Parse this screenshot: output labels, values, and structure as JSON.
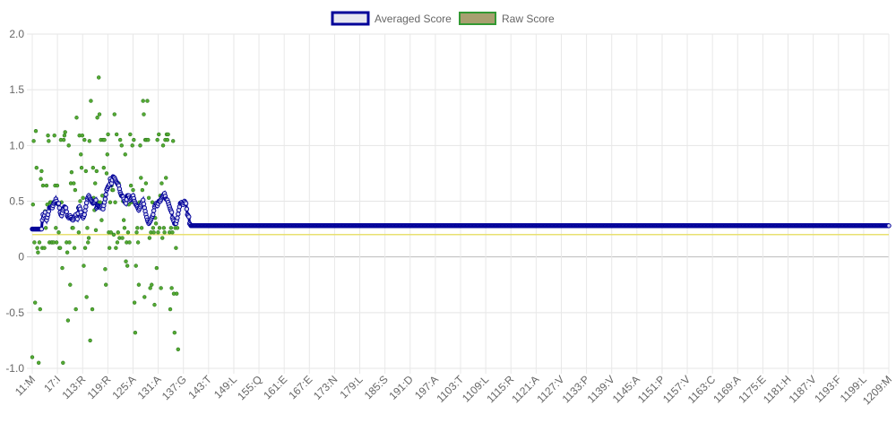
{
  "chart_data": {
    "type": "line",
    "legend": {
      "position": "top",
      "items": [
        {
          "label": "Averaged Score",
          "color": "#000099",
          "fill": "#e6e6f0"
        },
        {
          "label": "Raw Score",
          "color": "#339933",
          "fill": "#a8a070"
        }
      ]
    },
    "grid": true,
    "ylim": [
      -1.0,
      2.0
    ],
    "y_ticks": [
      "2.0",
      "1.5",
      "1.0",
      "0.5",
      "0",
      "-0.5",
      "-1.0"
    ],
    "y_tick_values": [
      2.0,
      1.5,
      1.0,
      0.5,
      0,
      -0.5,
      -1.0
    ],
    "threshold": {
      "value": 0.2,
      "color": "#e8e070"
    },
    "x_range": [
      11,
      1209
    ],
    "x_ticks": [
      "11:M",
      "17:I",
      "113:R",
      "119:R",
      "125:A",
      "131:A",
      "137:G",
      "143:T",
      "149:L",
      "155:Q",
      "161:E",
      "167:E",
      "173:N",
      "179:L",
      "185:S",
      "191:D",
      "197:A",
      "1103:T",
      "1109:L",
      "1115:R",
      "1121:A",
      "1127:V",
      "1133:P",
      "1139:V",
      "1145:A",
      "1151:P",
      "1157:V",
      "1163:C",
      "1169:A",
      "1175:E",
      "1181:H",
      "1187:V",
      "1193:F",
      "1199:L",
      "1209:M"
    ],
    "averaged_anchors": [
      [
        11,
        0.25
      ],
      [
        17,
        0.25
      ],
      [
        20,
        0.25
      ],
      [
        24,
        0.25
      ],
      [
        25,
        0.33
      ],
      [
        26,
        0.38
      ],
      [
        27,
        0.35
      ],
      [
        28,
        0.37
      ],
      [
        29,
        0.4
      ],
      [
        30,
        0.35
      ],
      [
        31,
        0.33
      ],
      [
        33,
        0.38
      ],
      [
        35,
        0.44
      ],
      [
        37,
        0.45
      ],
      [
        39,
        0.44
      ],
      [
        41,
        0.48
      ],
      [
        43,
        0.5
      ],
      [
        44,
        0.52
      ],
      [
        46,
        0.48
      ],
      [
        48,
        0.48
      ],
      [
        50,
        0.4
      ],
      [
        51,
        0.38
      ],
      [
        52,
        0.37
      ],
      [
        54,
        0.42
      ],
      [
        56,
        0.45
      ],
      [
        58,
        0.44
      ],
      [
        60,
        0.37
      ],
      [
        62,
        0.35
      ],
      [
        64,
        0.37
      ],
      [
        66,
        0.34
      ],
      [
        68,
        0.33
      ],
      [
        70,
        0.36
      ],
      [
        72,
        0.38
      ],
      [
        73,
        0.35
      ],
      [
        74,
        0.34
      ],
      [
        75,
        0.39
      ],
      [
        76,
        0.44
      ],
      [
        77,
        0.45
      ],
      [
        78,
        0.43
      ],
      [
        80,
        0.37
      ],
      [
        82,
        0.35
      ],
      [
        84,
        0.38
      ],
      [
        86,
        0.45
      ],
      [
        88,
        0.52
      ],
      [
        90,
        0.55
      ],
      [
        92,
        0.52
      ],
      [
        94,
        0.5
      ],
      [
        96,
        0.48
      ],
      [
        98,
        0.49
      ],
      [
        100,
        0.51
      ],
      [
        101,
        0.44
      ],
      [
        103,
        0.46
      ],
      [
        105,
        0.45
      ],
      [
        107,
        0.44
      ],
      [
        109,
        0.46
      ],
      [
        110,
        0.43
      ],
      [
        111,
        0.46
      ],
      [
        113,
        0.52
      ],
      [
        115,
        0.6
      ],
      [
        117,
        0.63
      ],
      [
        119,
        0.65
      ],
      [
        120,
        0.7
      ],
      [
        122,
        0.66
      ],
      [
        124,
        0.72
      ],
      [
        126,
        0.71
      ],
      [
        128,
        0.68
      ],
      [
        130,
        0.66
      ],
      [
        132,
        0.64
      ],
      [
        134,
        0.58
      ],
      [
        136,
        0.55
      ],
      [
        138,
        0.54
      ],
      [
        140,
        0.5
      ],
      [
        142,
        0.48
      ],
      [
        144,
        0.55
      ],
      [
        146,
        0.55
      ],
      [
        148,
        0.51
      ],
      [
        150,
        0.53
      ],
      [
        152,
        0.55
      ],
      [
        154,
        0.5
      ],
      [
        156,
        0.47
      ],
      [
        158,
        0.45
      ],
      [
        160,
        0.42
      ],
      [
        162,
        0.45
      ],
      [
        164,
        0.48
      ],
      [
        166,
        0.51
      ],
      [
        168,
        0.44
      ],
      [
        170,
        0.38
      ],
      [
        172,
        0.33
      ],
      [
        174,
        0.3
      ],
      [
        176,
        0.32
      ],
      [
        178,
        0.35
      ],
      [
        180,
        0.38
      ],
      [
        182,
        0.45
      ],
      [
        184,
        0.48
      ],
      [
        186,
        0.46
      ],
      [
        188,
        0.5
      ],
      [
        190,
        0.5
      ],
      [
        192,
        0.53
      ],
      [
        194,
        0.55
      ],
      [
        196,
        0.57
      ],
      [
        198,
        0.52
      ],
      [
        200,
        0.51
      ],
      [
        202,
        0.47
      ],
      [
        204,
        0.43
      ],
      [
        206,
        0.4
      ],
      [
        207,
        0.35
      ],
      [
        209,
        0.32
      ],
      [
        210,
        0.3
      ],
      [
        212,
        0.3
      ],
      [
        214,
        0.35
      ],
      [
        216,
        0.42
      ],
      [
        218,
        0.48
      ],
      [
        220,
        0.49
      ],
      [
        222,
        0.47
      ],
      [
        224,
        0.5
      ],
      [
        226,
        0.48
      ],
      [
        228,
        0.38
      ],
      [
        230,
        0.36
      ],
      [
        231,
        0.3
      ],
      [
        233,
        0.28
      ],
      [
        240,
        0.28
      ],
      [
        244,
        0.28
      ]
    ],
    "raw_points": [
      [
        11,
        -0.9
      ],
      [
        12,
        0.47
      ],
      [
        13,
        1.04
      ],
      [
        14,
        0.13
      ],
      [
        15,
        -0.41
      ],
      [
        16,
        1.13
      ],
      [
        17,
        0.8
      ],
      [
        18,
        0.08
      ],
      [
        19,
        0.04
      ],
      [
        20,
        -0.95
      ],
      [
        21,
        0.13
      ],
      [
        22,
        -0.47
      ],
      [
        23,
        0.7
      ],
      [
        24,
        0.77
      ],
      [
        25,
        0.08
      ],
      [
        26,
        0.64
      ],
      [
        27,
        0.35
      ],
      [
        28,
        0.08
      ],
      [
        29,
        0.41
      ],
      [
        30,
        0.26
      ],
      [
        31,
        0.64
      ],
      [
        32,
        0.47
      ],
      [
        33,
        1.09
      ],
      [
        34,
        1.04
      ],
      [
        35,
        0.13
      ],
      [
        36,
        0.49
      ],
      [
        37,
        0.49
      ],
      [
        38,
        0.13
      ],
      [
        39,
        0.13
      ],
      [
        40,
        0.49
      ],
      [
        41,
        0.13
      ],
      [
        42,
        1.09
      ],
      [
        43,
        0.64
      ],
      [
        44,
        0.26
      ],
      [
        45,
        0.13
      ],
      [
        46,
        0.64
      ],
      [
        47,
        0.47
      ],
      [
        48,
        0.22
      ],
      [
        49,
        0.08
      ],
      [
        50,
        0.08
      ],
      [
        51,
        1.05
      ],
      [
        52,
        0.49
      ],
      [
        53,
        -0.1
      ],
      [
        54,
        -0.95
      ],
      [
        55,
        1.05
      ],
      [
        56,
        1.09
      ],
      [
        57,
        1.12
      ],
      [
        58,
        0.44
      ],
      [
        59,
        0.13
      ],
      [
        60,
        0.04
      ],
      [
        61,
        -0.57
      ],
      [
        62,
        1.0
      ],
      [
        63,
        0.13
      ],
      [
        64,
        -0.25
      ],
      [
        65,
        0.66
      ],
      [
        66,
        0.76
      ],
      [
        67,
        0.26
      ],
      [
        68,
        0.26
      ],
      [
        69,
        0.66
      ],
      [
        70,
        0.08
      ],
      [
        71,
        0.6
      ],
      [
        72,
        -0.47
      ],
      [
        73,
        1.25
      ],
      [
        74,
        0.35
      ],
      [
        75,
        0.44
      ],
      [
        76,
        0.22
      ],
      [
        77,
        1.09
      ],
      [
        78,
        0.5
      ],
      [
        79,
        0.92
      ],
      [
        80,
        0.8
      ],
      [
        81,
        1.09
      ],
      [
        82,
        0.53
      ],
      [
        83,
        -0.08
      ],
      [
        84,
        1.05
      ],
      [
        85,
        0.08
      ],
      [
        86,
        0.77
      ],
      [
        87,
        -0.36
      ],
      [
        88,
        0.26
      ],
      [
        89,
        0.13
      ],
      [
        90,
        0.17
      ],
      [
        91,
        1.04
      ],
      [
        92,
        -0.75
      ],
      [
        93,
        1.4
      ],
      [
        94,
        0.49
      ],
      [
        95,
        -0.47
      ],
      [
        96,
        0.8
      ],
      [
        97,
        0.53
      ],
      [
        98,
        0.42
      ],
      [
        99,
        0.66
      ],
      [
        100,
        0.24
      ],
      [
        101,
        0.77
      ],
      [
        102,
        1.25
      ],
      [
        103,
        0.49
      ],
      [
        104,
        1.61
      ],
      [
        105,
        1.28
      ],
      [
        106,
        0.49
      ],
      [
        107,
        1.05
      ],
      [
        108,
        0.33
      ],
      [
        109,
        0.55
      ],
      [
        110,
        1.05
      ],
      [
        111,
        0.8
      ],
      [
        112,
        1.05
      ],
      [
        113,
        -0.11
      ],
      [
        114,
        -0.25
      ],
      [
        115,
        0.75
      ],
      [
        116,
        0.92
      ],
      [
        117,
        1.1
      ],
      [
        118,
        0.22
      ],
      [
        119,
        0.08
      ],
      [
        120,
        0.49
      ],
      [
        121,
        0.22
      ],
      [
        122,
        0.64
      ],
      [
        123,
        0.6
      ],
      [
        124,
        0.6
      ],
      [
        125,
        0.2
      ],
      [
        126,
        1.28
      ],
      [
        127,
        0.49
      ],
      [
        128,
        0.08
      ],
      [
        129,
        1.1
      ],
      [
        130,
        0.13
      ],
      [
        131,
        0.22
      ],
      [
        132,
        0.66
      ],
      [
        133,
        0.17
      ],
      [
        134,
        1.05
      ],
      [
        135,
        0.55
      ],
      [
        136,
        1.0
      ],
      [
        137,
        0.17
      ],
      [
        138,
        0.5
      ],
      [
        139,
        0.33
      ],
      [
        140,
        0.26
      ],
      [
        141,
        0.92
      ],
      [
        142,
        -0.04
      ],
      [
        143,
        0.13
      ],
      [
        144,
        -0.08
      ],
      [
        145,
        0.22
      ],
      [
        146,
        0.47
      ],
      [
        147,
        0.13
      ],
      [
        148,
        1.1
      ],
      [
        149,
        0.64
      ],
      [
        150,
        0.49
      ],
      [
        151,
        1.0
      ],
      [
        152,
        0.6
      ],
      [
        153,
        1.05
      ],
      [
        154,
        -0.41
      ],
      [
        155,
        -0.68
      ],
      [
        156,
        -0.08
      ],
      [
        157,
        0.22
      ],
      [
        158,
        0.26
      ],
      [
        159,
        0.13
      ],
      [
        160,
        -0.25
      ],
      [
        161,
        0.49
      ],
      [
        162,
        1.0
      ],
      [
        163,
        0.71
      ],
      [
        164,
        0.26
      ],
      [
        165,
        0.6
      ],
      [
        166,
        1.4
      ],
      [
        167,
        1.28
      ],
      [
        168,
        -0.36
      ],
      [
        169,
        1.05
      ],
      [
        170,
        0.66
      ],
      [
        171,
        1.05
      ],
      [
        172,
        1.4
      ],
      [
        173,
        1.05
      ],
      [
        174,
        0.53
      ],
      [
        175,
        0.17
      ],
      [
        176,
        -0.28
      ],
      [
        177,
        0.22
      ],
      [
        178,
        -0.25
      ],
      [
        179,
        0.49
      ],
      [
        180,
        0.26
      ],
      [
        181,
        0.22
      ],
      [
        182,
        -0.43
      ],
      [
        183,
        0.35
      ],
      [
        184,
        0.3
      ],
      [
        185,
        -0.1
      ],
      [
        186,
        1.05
      ],
      [
        187,
        0.22
      ],
      [
        188,
        1.1
      ],
      [
        189,
        0.26
      ],
      [
        190,
        0.55
      ],
      [
        191,
        -0.28
      ],
      [
        192,
        0.66
      ],
      [
        193,
        0.17
      ],
      [
        194,
        1.0
      ],
      [
        195,
        0.26
      ],
      [
        196,
        0.22
      ],
      [
        197,
        1.05
      ],
      [
        198,
        0.71
      ],
      [
        199,
        1.1
      ],
      [
        200,
        1.05
      ],
      [
        201,
        1.1
      ],
      [
        202,
        0.49
      ],
      [
        203,
        0.22
      ],
      [
        204,
        -0.47
      ],
      [
        205,
        0.26
      ],
      [
        206,
        -0.28
      ],
      [
        207,
        0.22
      ],
      [
        208,
        1.04
      ],
      [
        209,
        -0.33
      ],
      [
        210,
        -0.68
      ],
      [
        211,
        0.26
      ],
      [
        212,
        0.08
      ],
      [
        213,
        -0.33
      ],
      [
        214,
        0.26
      ],
      [
        215,
        -0.83
      ]
    ]
  }
}
